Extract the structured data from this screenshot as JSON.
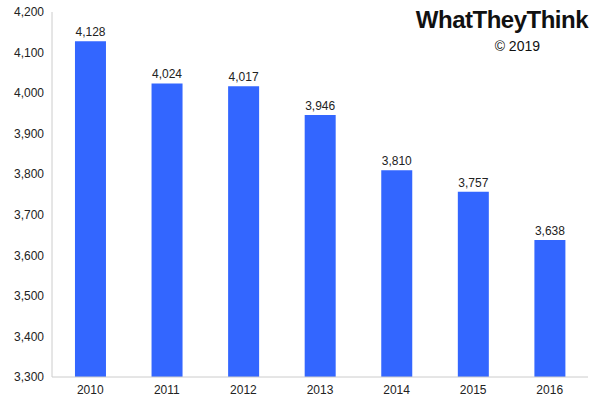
{
  "chart_data": {
    "type": "bar",
    "annotations": [
      "WhatTheyThink",
      "© 2019"
    ],
    "categories": [
      "2010",
      "2011",
      "2012",
      "2013",
      "2014",
      "2015",
      "2016"
    ],
    "values": [
      4128,
      4024,
      4017,
      3946,
      3810,
      3757,
      3638
    ],
    "value_labels": [
      "4,128",
      "4,024",
      "4,017",
      "3,946",
      "3,810",
      "3,757",
      "3,638"
    ],
    "color": "#3366ff",
    "ylim": [
      3300,
      4200
    ],
    "yticks": [
      {
        "value": 3300,
        "label": "3,300"
      },
      {
        "value": 3400,
        "label": "3,400"
      },
      {
        "value": 3500,
        "label": "3,500"
      },
      {
        "value": 3600,
        "label": "3,600"
      },
      {
        "value": 3700,
        "label": "3,700"
      },
      {
        "value": 3800,
        "label": "3,800"
      },
      {
        "value": 3900,
        "label": "3,900"
      },
      {
        "value": 4000,
        "label": "4,000"
      },
      {
        "value": 4100,
        "label": "4,100"
      },
      {
        "value": 4200,
        "label": "4,200"
      }
    ],
    "grid": false,
    "data_labels": true
  }
}
